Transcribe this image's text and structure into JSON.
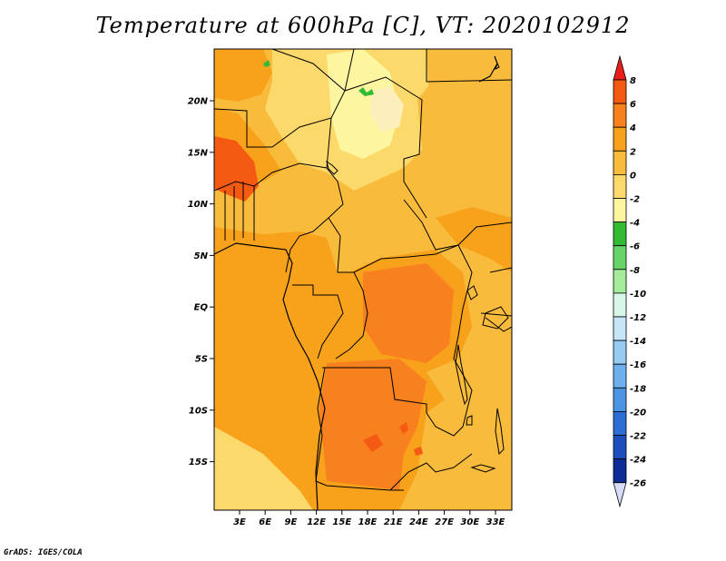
{
  "title": "Temperature at 600hPa [C], VT: 2020102912",
  "credit": "GrADS: IGES/COLA",
  "map": {
    "variable": "Temperature",
    "level": "600hPa",
    "unit": "C",
    "valid_time": "2020102912",
    "lat_ticks": [
      "20N",
      "15N",
      "10N",
      "5N",
      "EQ",
      "5S",
      "10S",
      "15S"
    ],
    "lon_ticks": [
      "3E",
      "6E",
      "9E",
      "12E",
      "15E",
      "18E",
      "21E",
      "24E",
      "27E",
      "30E",
      "33E"
    ]
  },
  "legend": {
    "labels": [
      "8",
      "6",
      "4",
      "2",
      "0",
      "-2",
      "-4",
      "-6",
      "-8",
      "-10",
      "-12",
      "-14",
      "-16",
      "-18",
      "-20",
      "-22",
      "-24",
      "-26"
    ],
    "colors": [
      "#e8201a",
      "#f55a12",
      "#f8801e",
      "#f7a21a",
      "#f9bb3c",
      "#fcd96b",
      "#fdf5a0",
      "#33bb33",
      "#66d466",
      "#a4ec9a",
      "#d8f6e8",
      "#c6e6f8",
      "#96ccf4",
      "#6eb0ee",
      "#4a94e2",
      "#2c6ed4",
      "#1c4ebc",
      "#0c2c96",
      "#081a5e",
      "#d8dcf8"
    ]
  }
}
